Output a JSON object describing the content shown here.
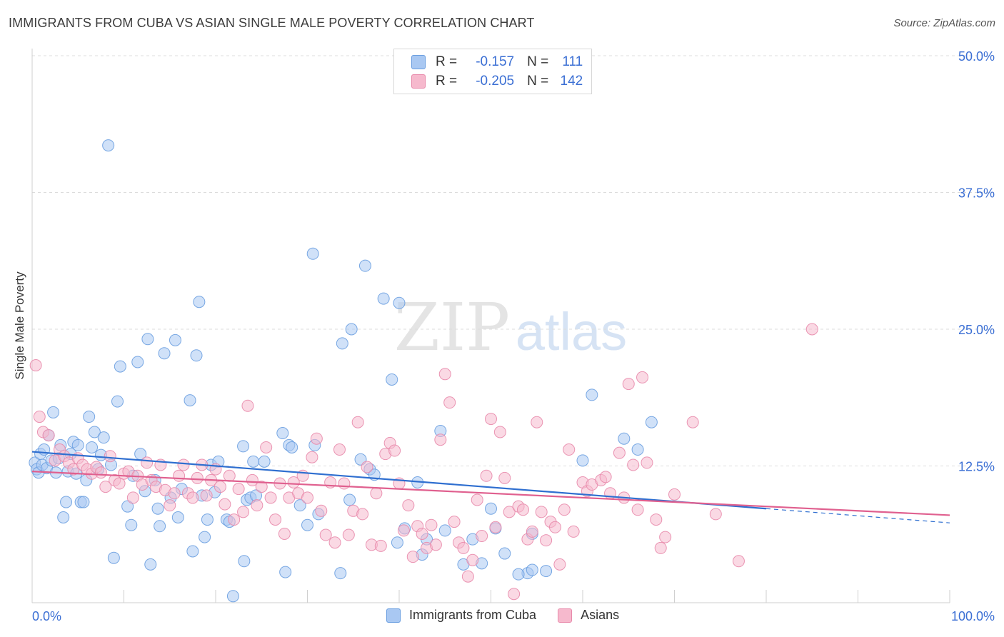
{
  "title": "IMMIGRANTS FROM CUBA VS ASIAN SINGLE MALE POVERTY CORRELATION CHART",
  "source": "Source: ZipAtlas.com",
  "colors": {
    "blue_fill": "#a9c8f2",
    "blue_stroke": "#6a9ee0",
    "blue_line": "#2f6fd0",
    "pink_fill": "#f6b9cd",
    "pink_stroke": "#e88aab",
    "pink_line": "#e0608f",
    "axis_text": "#3b6fd4",
    "grid": "#dcdcdc"
  },
  "legend": {
    "series1": {
      "r_label": "R =",
      "r_value": "-0.157",
      "n_label": "N =",
      "n_value": "111"
    },
    "series2": {
      "r_label": "R =",
      "r_value": "-0.205",
      "n_label": "N =",
      "n_value": "142"
    }
  },
  "watermark": {
    "zip": "ZIP",
    "atlas": "atlas"
  },
  "chart_data": {
    "type": "scatter",
    "ylabel": "Single Male Poverty",
    "x_ticks": [
      "0.0%",
      "100.0%"
    ],
    "y_ticks": [
      "12.5%",
      "25.0%",
      "37.5%",
      "50.0%"
    ],
    "xlim": [
      0,
      100
    ],
    "ylim": [
      0,
      50
    ],
    "grid": "horizontal dashed",
    "legend_position": "top-center",
    "series": [
      {
        "name": "Immigrants from Cuba",
        "color": "blue",
        "R": -0.157,
        "N": 111,
        "trend": {
          "x": [
            0,
            80
          ],
          "y": [
            13.8,
            8.6
          ],
          "dashed_to": [
            100,
            7.3
          ]
        },
        "points": [
          [
            0.3,
            12.8
          ],
          [
            0.5,
            12.2
          ],
          [
            0.7,
            11.9
          ],
          [
            0.9,
            13.6
          ],
          [
            1.1,
            12.6
          ],
          [
            1.3,
            14.0
          ],
          [
            1.6,
            12.3
          ],
          [
            1.8,
            15.3
          ],
          [
            2.1,
            13.0
          ],
          [
            2.3,
            17.4
          ],
          [
            2.6,
            11.9
          ],
          [
            2.9,
            13.2
          ],
          [
            3.1,
            14.4
          ],
          [
            3.4,
            7.8
          ],
          [
            3.7,
            9.2
          ],
          [
            3.9,
            12.0
          ],
          [
            4.2,
            13.6
          ],
          [
            4.5,
            14.7
          ],
          [
            4.8,
            11.8
          ],
          [
            5.0,
            14.4
          ],
          [
            5.3,
            9.2
          ],
          [
            5.6,
            9.2
          ],
          [
            5.9,
            11.2
          ],
          [
            6.2,
            17.0
          ],
          [
            6.5,
            14.2
          ],
          [
            6.8,
            15.6
          ],
          [
            7.2,
            12.2
          ],
          [
            7.5,
            13.5
          ],
          [
            7.8,
            15.1
          ],
          [
            8.3,
            41.8
          ],
          [
            8.6,
            12.6
          ],
          [
            8.9,
            4.1
          ],
          [
            9.6,
            21.6
          ],
          [
            9.3,
            18.4
          ],
          [
            10.4,
            8.8
          ],
          [
            10.8,
            7.1
          ],
          [
            11.0,
            11.6
          ],
          [
            11.5,
            22.0
          ],
          [
            11.8,
            13.6
          ],
          [
            12.3,
            10.2
          ],
          [
            12.6,
            24.1
          ],
          [
            12.9,
            3.5
          ],
          [
            13.4,
            11.2
          ],
          [
            13.7,
            8.6
          ],
          [
            13.9,
            7.0
          ],
          [
            14.4,
            22.8
          ],
          [
            15.1,
            9.6
          ],
          [
            15.6,
            24.0
          ],
          [
            15.9,
            7.8
          ],
          [
            16.3,
            10.4
          ],
          [
            17.2,
            18.5
          ],
          [
            17.5,
            4.7
          ],
          [
            17.9,
            22.6
          ],
          [
            18.2,
            27.5
          ],
          [
            18.5,
            9.8
          ],
          [
            18.8,
            6.0
          ],
          [
            19.1,
            7.6
          ],
          [
            19.5,
            12.6
          ],
          [
            19.9,
            10.1
          ],
          [
            20.3,
            12.9
          ],
          [
            21.2,
            7.6
          ],
          [
            21.5,
            7.4
          ],
          [
            21.9,
            0.6
          ],
          [
            23.0,
            14.3
          ],
          [
            23.1,
            3.8
          ],
          [
            23.4,
            9.4
          ],
          [
            23.8,
            9.6
          ],
          [
            24.1,
            12.9
          ],
          [
            24.4,
            9.8
          ],
          [
            25.3,
            12.9
          ],
          [
            27.3,
            15.5
          ],
          [
            27.6,
            2.8
          ],
          [
            28.0,
            14.4
          ],
          [
            28.3,
            14.2
          ],
          [
            29.2,
            8.9
          ],
          [
            30.0,
            7.1
          ],
          [
            30.6,
            31.9
          ],
          [
            30.8,
            14.4
          ],
          [
            31.2,
            8.1
          ],
          [
            33.8,
            23.7
          ],
          [
            33.6,
            2.7
          ],
          [
            34.6,
            9.4
          ],
          [
            34.8,
            25.0
          ],
          [
            35.8,
            13.1
          ],
          [
            36.3,
            30.8
          ],
          [
            36.8,
            12.2
          ],
          [
            37.3,
            11.7
          ],
          [
            38.3,
            27.8
          ],
          [
            39.2,
            20.4
          ],
          [
            40.0,
            27.4
          ],
          [
            40.6,
            6.8
          ],
          [
            39.8,
            5.5
          ],
          [
            42.0,
            11.0
          ],
          [
            42.5,
            4.4
          ],
          [
            43.0,
            5.8
          ],
          [
            44.5,
            15.7
          ],
          [
            45.0,
            6.6
          ],
          [
            47.0,
            3.5
          ],
          [
            48.0,
            5.8
          ],
          [
            49.0,
            3.6
          ],
          [
            50.0,
            8.6
          ],
          [
            50.5,
            6.8
          ],
          [
            51.5,
            4.5
          ],
          [
            54.0,
            2.7
          ],
          [
            53.0,
            2.6
          ],
          [
            54.5,
            3.0
          ],
          [
            56.0,
            2.9
          ],
          [
            54.5,
            6.3
          ],
          [
            60.0,
            13.0
          ],
          [
            61.0,
            19.0
          ],
          [
            64.5,
            15.0
          ],
          [
            66.0,
            14.0
          ],
          [
            67.5,
            16.5
          ]
        ]
      },
      {
        "name": "Asians",
        "color": "pink",
        "R": -0.205,
        "N": 142,
        "trend": {
          "x": [
            0,
            100
          ],
          "y": [
            12.0,
            8.0
          ]
        },
        "points": [
          [
            0.4,
            21.7
          ],
          [
            0.8,
            17.0
          ],
          [
            1.2,
            15.6
          ],
          [
            1.8,
            15.3
          ],
          [
            2.5,
            13.0
          ],
          [
            3.0,
            14.0
          ],
          [
            3.5,
            13.4
          ],
          [
            4.0,
            12.8
          ],
          [
            4.5,
            12.2
          ],
          [
            5.0,
            13.2
          ],
          [
            5.5,
            12.6
          ],
          [
            6.0,
            12.2
          ],
          [
            6.5,
            11.8
          ],
          [
            7.0,
            12.4
          ],
          [
            7.5,
            11.9
          ],
          [
            8.0,
            10.6
          ],
          [
            8.5,
            13.4
          ],
          [
            9.0,
            11.2
          ],
          [
            9.5,
            10.9
          ],
          [
            10.0,
            11.8
          ],
          [
            10.5,
            12.0
          ],
          [
            11.0,
            9.6
          ],
          [
            11.5,
            11.6
          ],
          [
            12.0,
            10.8
          ],
          [
            12.5,
            12.8
          ],
          [
            13.0,
            11.2
          ],
          [
            13.5,
            10.6
          ],
          [
            14.0,
            12.6
          ],
          [
            14.5,
            10.3
          ],
          [
            15.0,
            8.9
          ],
          [
            15.5,
            10.0
          ],
          [
            16.0,
            11.6
          ],
          [
            16.5,
            12.6
          ],
          [
            17.0,
            10.0
          ],
          [
            17.5,
            9.6
          ],
          [
            18.0,
            11.4
          ],
          [
            18.5,
            12.6
          ],
          [
            19.0,
            9.8
          ],
          [
            19.5,
            11.2
          ],
          [
            20.0,
            12.2
          ],
          [
            20.5,
            10.6
          ],
          [
            21.0,
            9.0
          ],
          [
            21.5,
            11.6
          ],
          [
            22.0,
            7.6
          ],
          [
            22.5,
            10.4
          ],
          [
            23.0,
            8.3
          ],
          [
            23.5,
            18.0
          ],
          [
            24.0,
            11.2
          ],
          [
            24.5,
            8.9
          ],
          [
            25.0,
            10.6
          ],
          [
            25.5,
            14.2
          ],
          [
            26.0,
            9.6
          ],
          [
            26.5,
            7.6
          ],
          [
            27.0,
            10.9
          ],
          [
            27.5,
            6.3
          ],
          [
            28.0,
            9.6
          ],
          [
            28.5,
            11.0
          ],
          [
            29.0,
            10.0
          ],
          [
            29.5,
            11.6
          ],
          [
            30.0,
            9.6
          ],
          [
            30.5,
            13.3
          ],
          [
            31.0,
            15.0
          ],
          [
            31.5,
            8.4
          ],
          [
            32.0,
            6.2
          ],
          [
            32.5,
            11.0
          ],
          [
            33.0,
            5.5
          ],
          [
            33.5,
            14.0
          ],
          [
            34.0,
            10.9
          ],
          [
            34.5,
            6.2
          ],
          [
            35.0,
            8.4
          ],
          [
            35.5,
            16.5
          ],
          [
            36.0,
            8.1
          ],
          [
            36.5,
            12.4
          ],
          [
            37.0,
            5.3
          ],
          [
            37.5,
            10.0
          ],
          [
            38.0,
            5.2
          ],
          [
            38.5,
            13.6
          ],
          [
            39.0,
            14.6
          ],
          [
            39.5,
            13.9
          ],
          [
            40.0,
            10.9
          ],
          [
            40.5,
            6.6
          ],
          [
            41.0,
            8.9
          ],
          [
            41.5,
            4.2
          ],
          [
            42.0,
            7.0
          ],
          [
            42.5,
            6.3
          ],
          [
            43.0,
            5.0
          ],
          [
            43.5,
            7.1
          ],
          [
            44.0,
            5.3
          ],
          [
            44.5,
            14.9
          ],
          [
            45.0,
            20.9
          ],
          [
            45.5,
            18.3
          ],
          [
            46.0,
            7.4
          ],
          [
            46.5,
            5.5
          ],
          [
            47.0,
            5.0
          ],
          [
            47.5,
            2.4
          ],
          [
            48.0,
            3.9
          ],
          [
            48.5,
            9.4
          ],
          [
            49.0,
            6.1
          ],
          [
            49.5,
            11.6
          ],
          [
            50.0,
            16.8
          ],
          [
            50.5,
            6.9
          ],
          [
            51.0,
            15.6
          ],
          [
            51.5,
            11.4
          ],
          [
            52.0,
            8.3
          ],
          [
            52.5,
            0.8
          ],
          [
            53.0,
            8.8
          ],
          [
            53.5,
            8.5
          ],
          [
            54.0,
            5.8
          ],
          [
            54.5,
            6.5
          ],
          [
            55.0,
            16.5
          ],
          [
            55.5,
            8.3
          ],
          [
            56.0,
            5.7
          ],
          [
            56.5,
            7.4
          ],
          [
            57.0,
            6.9
          ],
          [
            57.5,
            3.5
          ],
          [
            58.0,
            8.5
          ],
          [
            58.5,
            14.0
          ],
          [
            59.0,
            6.5
          ],
          [
            60.0,
            11.0
          ],
          [
            60.5,
            10.2
          ],
          [
            61.0,
            10.8
          ],
          [
            62.0,
            11.2
          ],
          [
            62.5,
            11.5
          ],
          [
            63.0,
            10.0
          ],
          [
            64.0,
            13.7
          ],
          [
            64.5,
            9.6
          ],
          [
            65.0,
            20.0
          ],
          [
            65.5,
            12.6
          ],
          [
            66.0,
            8.5
          ],
          [
            66.5,
            20.6
          ],
          [
            67.0,
            12.8
          ],
          [
            68.0,
            7.6
          ],
          [
            68.5,
            5.0
          ],
          [
            69.0,
            6.0
          ],
          [
            70.0,
            9.9
          ],
          [
            72.0,
            16.5
          ],
          [
            74.5,
            8.1
          ],
          [
            77.0,
            3.8
          ],
          [
            85.0,
            25.0
          ]
        ]
      }
    ]
  },
  "bottom_legend": [
    "Immigrants from Cuba",
    "Asians"
  ]
}
